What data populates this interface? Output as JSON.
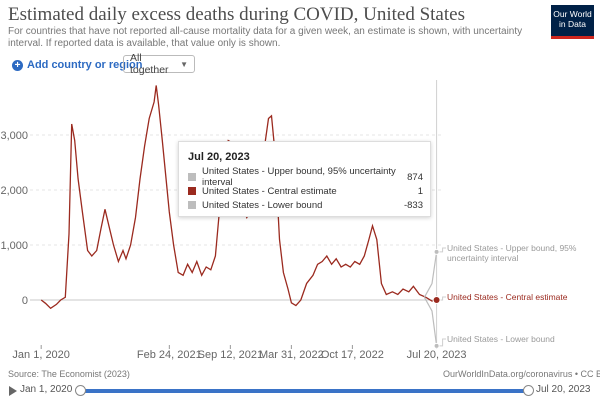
{
  "header": {
    "title": "Estimated daily excess deaths during COVID, United States",
    "subtitle": "For countries that have not reported all-cause mortality data for a given week, an estimate is shown, with uncertainty interval. If reported data is available, that value only is shown.",
    "logo_line1": "Our World",
    "logo_line2": "in Data"
  },
  "controls": {
    "add_country_label": "Add country or region",
    "plus_glyph": "+",
    "select_value": "All together"
  },
  "tooltip": {
    "date": "Jul 20, 2023",
    "rows": [
      {
        "label": "United States - Upper bound, 95% uncertainty interval",
        "value": "874",
        "color": "#bdbdbd"
      },
      {
        "label": "United States - Central estimate",
        "value": "1",
        "color": "#9b2a1f"
      },
      {
        "label": "United States - Lower bound",
        "value": "-833",
        "color": "#bdbdbd"
      }
    ]
  },
  "footer": {
    "source": "Source: The Economist (2023)",
    "credit": "OurWorldInData.org/coronavirus • CC BY"
  },
  "timeline": {
    "start": "Jan 1, 2020",
    "end": "Jul 20, 2023"
  },
  "chart_data": {
    "type": "line",
    "title": "Estimated daily excess deaths during COVID, United States",
    "ylim": [
      -1000,
      4000
    ],
    "y_ticks": [
      0,
      1000,
      2000,
      3000
    ],
    "y_tick_labels": [
      "0",
      "1,000",
      "2,000",
      "3,000"
    ],
    "x_tick_labels": [
      "Jan 1, 2020",
      "Feb 24, 2021",
      "Sep 12, 2021",
      "Mar 31, 2022",
      "Oct 17, 2022",
      "Jul 20, 2023"
    ],
    "x_tick_dates": [
      "2020-01-01",
      "2021-02-24",
      "2021-09-12",
      "2022-03-31",
      "2022-10-17",
      "2023-07-20"
    ],
    "x_range": [
      "2019-12-15",
      "2023-08-10"
    ],
    "series": [
      {
        "name": "United States - Central estimate",
        "color": "#9b2a1f",
        "end_label": "United States - Central estimate",
        "points": [
          [
            "2020-01-01",
            0
          ],
          [
            "2020-01-15",
            -60
          ],
          [
            "2020-02-01",
            -150
          ],
          [
            "2020-02-20",
            -80
          ],
          [
            "2020-03-05",
            0
          ],
          [
            "2020-03-20",
            50
          ],
          [
            "2020-04-01",
            1200
          ],
          [
            "2020-04-10",
            3200
          ],
          [
            "2020-04-20",
            2900
          ],
          [
            "2020-05-01",
            2200
          ],
          [
            "2020-05-15",
            1600
          ],
          [
            "2020-06-01",
            900
          ],
          [
            "2020-06-15",
            800
          ],
          [
            "2020-07-01",
            900
          ],
          [
            "2020-07-15",
            1300
          ],
          [
            "2020-07-28",
            1650
          ],
          [
            "2020-08-10",
            1350
          ],
          [
            "2020-08-25",
            1000
          ],
          [
            "2020-09-10",
            700
          ],
          [
            "2020-09-25",
            900
          ],
          [
            "2020-10-05",
            750
          ],
          [
            "2020-10-20",
            1000
          ],
          [
            "2020-11-05",
            1500
          ],
          [
            "2020-11-20",
            2200
          ],
          [
            "2020-12-05",
            2800
          ],
          [
            "2020-12-20",
            3300
          ],
          [
            "2021-01-05",
            3600
          ],
          [
            "2021-01-12",
            3900
          ],
          [
            "2021-01-20",
            3550
          ],
          [
            "2021-02-01",
            2900
          ],
          [
            "2021-02-24",
            1600
          ],
          [
            "2021-03-10",
            1000
          ],
          [
            "2021-03-25",
            500
          ],
          [
            "2021-04-10",
            450
          ],
          [
            "2021-04-25",
            650
          ],
          [
            "2021-05-10",
            500
          ],
          [
            "2021-05-25",
            700
          ],
          [
            "2021-06-10",
            450
          ],
          [
            "2021-06-25",
            600
          ],
          [
            "2021-07-10",
            550
          ],
          [
            "2021-07-25",
            800
          ],
          [
            "2021-08-10",
            1800
          ],
          [
            "2021-08-25",
            2600
          ],
          [
            "2021-09-05",
            2900
          ],
          [
            "2021-09-20",
            2850
          ],
          [
            "2021-10-05",
            2150
          ],
          [
            "2021-10-20",
            1700
          ],
          [
            "2021-11-05",
            1500
          ],
          [
            "2021-11-20",
            1650
          ],
          [
            "2021-12-05",
            2100
          ],
          [
            "2021-12-20",
            2500
          ],
          [
            "2022-01-05",
            2900
          ],
          [
            "2022-01-15",
            3300
          ],
          [
            "2022-01-25",
            3350
          ],
          [
            "2022-02-05",
            2700
          ],
          [
            "2022-02-20",
            1100
          ],
          [
            "2022-03-05",
            500
          ],
          [
            "2022-03-20",
            200
          ],
          [
            "2022-03-31",
            -50
          ],
          [
            "2022-04-15",
            -100
          ],
          [
            "2022-05-01",
            0
          ],
          [
            "2022-05-20",
            300
          ],
          [
            "2022-06-10",
            450
          ],
          [
            "2022-06-25",
            650
          ],
          [
            "2022-07-10",
            700
          ],
          [
            "2022-07-25",
            800
          ],
          [
            "2022-08-10",
            650
          ],
          [
            "2022-08-25",
            750
          ],
          [
            "2022-09-10",
            600
          ],
          [
            "2022-09-25",
            650
          ],
          [
            "2022-10-10",
            600
          ],
          [
            "2022-10-25",
            700
          ],
          [
            "2022-11-10",
            650
          ],
          [
            "2022-11-25",
            800
          ],
          [
            "2022-12-10",
            1100
          ],
          [
            "2022-12-22",
            1350
          ],
          [
            "2023-01-05",
            1100
          ],
          [
            "2023-01-20",
            300
          ],
          [
            "2023-02-05",
            100
          ],
          [
            "2023-02-25",
            150
          ],
          [
            "2023-03-15",
            100
          ],
          [
            "2023-04-01",
            200
          ],
          [
            "2023-04-20",
            150
          ],
          [
            "2023-05-05",
            250
          ],
          [
            "2023-05-25",
            100
          ],
          [
            "2023-06-15",
            50
          ],
          [
            "2023-07-05",
            -20
          ],
          [
            "2023-07-20",
            1
          ]
        ]
      },
      {
        "name": "United States - Upper bound, 95% uncertainty interval",
        "color": "#bdbdbd",
        "end_label": "United States - Upper bound, 95% uncertainty interval",
        "points": [
          [
            "2023-06-10",
            50
          ],
          [
            "2023-07-05",
            300
          ],
          [
            "2023-07-20",
            874
          ]
        ]
      },
      {
        "name": "United States - Lower bound",
        "color": "#bdbdbd",
        "end_label": "United States - Lower bound",
        "points": [
          [
            "2023-06-10",
            50
          ],
          [
            "2023-07-05",
            -200
          ],
          [
            "2023-07-20",
            -833
          ]
        ]
      }
    ],
    "hover_date": "2023-07-20",
    "grid": "horizontal",
    "legend": "line-end labels"
  }
}
